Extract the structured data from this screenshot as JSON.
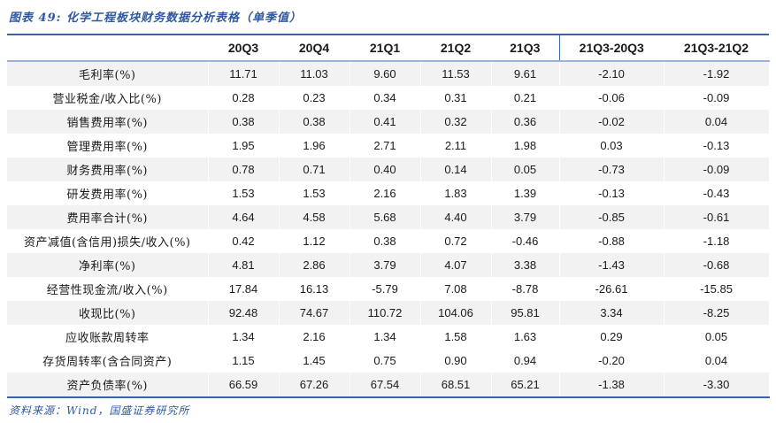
{
  "figure": {
    "title": "图表 49: 化学工程板块财务数据分析表格（单季值）",
    "source": "资料来源：Wind，国盛证券研究所"
  },
  "colors": {
    "accent_blue": "#3a63a9",
    "header_divider": "#9db4d8",
    "stripe_gray": "#f2f2f2",
    "title_blue": "#2e58a0",
    "text": "#1a1a1a"
  },
  "table": {
    "columns": [
      "",
      "20Q3",
      "20Q4",
      "21Q1",
      "21Q2",
      "21Q3",
      "21Q3-20Q3",
      "21Q3-21Q2"
    ],
    "rows": [
      {
        "label": "毛利率(%)",
        "values": [
          "11.71",
          "11.03",
          "9.60",
          "11.53",
          "9.61",
          "-2.10",
          "-1.92"
        ],
        "shaded": true
      },
      {
        "label": "营业税金/收入比(%)",
        "values": [
          "0.28",
          "0.23",
          "0.34",
          "0.31",
          "0.21",
          "-0.06",
          "-0.09"
        ],
        "shaded": false
      },
      {
        "label": "销售费用率(%)",
        "values": [
          "0.38",
          "0.38",
          "0.41",
          "0.32",
          "0.36",
          "-0.02",
          "0.04"
        ],
        "shaded": true
      },
      {
        "label": "管理费用率(%)",
        "values": [
          "1.95",
          "1.96",
          "2.71",
          "2.11",
          "1.98",
          "0.03",
          "-0.13"
        ],
        "shaded": false
      },
      {
        "label": "财务费用率(%)",
        "values": [
          "0.78",
          "0.71",
          "0.40",
          "0.14",
          "0.05",
          "-0.73",
          "-0.09"
        ],
        "shaded": true
      },
      {
        "label": "研发费用率(%)",
        "values": [
          "1.53",
          "1.53",
          "2.16",
          "1.83",
          "1.39",
          "-0.13",
          "-0.43"
        ],
        "shaded": false
      },
      {
        "label": "费用率合计(%)",
        "values": [
          "4.64",
          "4.58",
          "5.68",
          "4.40",
          "3.79",
          "-0.85",
          "-0.61"
        ],
        "shaded": true
      },
      {
        "label": "资产减值(含信用)损失/收入(%)",
        "values": [
          "0.42",
          "1.12",
          "0.38",
          "0.72",
          "-0.46",
          "-0.88",
          "-1.18"
        ],
        "shaded": false
      },
      {
        "label": "净利率(%)",
        "values": [
          "4.81",
          "2.86",
          "3.79",
          "4.07",
          "3.38",
          "-1.43",
          "-0.68"
        ],
        "shaded": true
      },
      {
        "label": "经营性现金流/收入(%)",
        "values": [
          "17.84",
          "16.13",
          "-5.79",
          "7.08",
          "-8.78",
          "-26.61",
          "-15.85"
        ],
        "shaded": false
      },
      {
        "label": "收现比(%)",
        "values": [
          "92.48",
          "74.67",
          "110.72",
          "104.06",
          "95.81",
          "3.34",
          "-8.25"
        ],
        "shaded": true
      },
      {
        "label": "应收账款周转率",
        "values": [
          "1.34",
          "2.16",
          "1.34",
          "1.58",
          "1.63",
          "0.29",
          "0.05"
        ],
        "shaded": false
      },
      {
        "label": "存货周转率(含合同资产)",
        "values": [
          "1.15",
          "1.45",
          "0.75",
          "0.90",
          "0.94",
          "-0.20",
          "0.04"
        ],
        "shaded": false
      },
      {
        "label": "资产负债率(%)",
        "values": [
          "66.59",
          "67.26",
          "67.54",
          "68.51",
          "65.21",
          "-1.38",
          "-3.30"
        ],
        "shaded": true
      }
    ]
  }
}
